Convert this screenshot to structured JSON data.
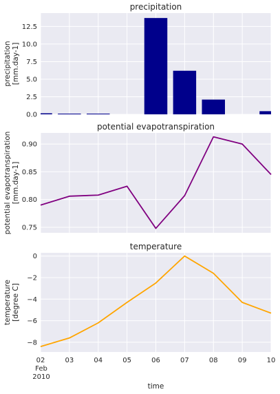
{
  "chart_data": [
    {
      "type": "bar",
      "title": "precipitation",
      "ylabel": [
        "precipitation",
        "[mm.day-1]"
      ],
      "x": [
        "2010-02-02",
        "2010-02-03",
        "2010-02-04",
        "2010-02-05",
        "2010-02-06",
        "2010-02-07",
        "2010-02-08",
        "2010-02-09",
        "2010-02-10"
      ],
      "values": [
        0.15,
        0.1,
        0.1,
        0.0,
        13.7,
        6.2,
        2.1,
        0.0,
        0.45
      ],
      "ylim": [
        0,
        14.4
      ],
      "yticks": [
        0.0,
        2.5,
        5.0,
        7.5,
        10.0,
        12.5
      ],
      "ytick_labels": [
        "0.0",
        "2.5",
        "5.0",
        "7.5",
        "10.0",
        "12.5"
      ],
      "color": "#00008b"
    },
    {
      "type": "line",
      "title": "potential evapotranspiration",
      "ylabel": [
        "potential evapotranspiration",
        "[mm.day-1]"
      ],
      "x": [
        "2010-02-02",
        "2010-02-03",
        "2010-02-04",
        "2010-02-05",
        "2010-02-06",
        "2010-02-07",
        "2010-02-08",
        "2010-02-09",
        "2010-02-10"
      ],
      "values": [
        0.79,
        0.806,
        0.808,
        0.824,
        0.748,
        0.807,
        0.913,
        0.9,
        0.845
      ],
      "ylim": [
        0.74,
        0.92
      ],
      "yticks": [
        0.75,
        0.8,
        0.85,
        0.9
      ],
      "ytick_labels": [
        "0.75",
        "0.80",
        "0.85",
        "0.90"
      ],
      "color": "#800080"
    },
    {
      "type": "line",
      "title": "temperature",
      "ylabel": [
        "temperature",
        "[degree C]"
      ],
      "xlabel": "time",
      "x": [
        "2010-02-02",
        "2010-02-03",
        "2010-02-04",
        "2010-02-05",
        "2010-02-06",
        "2010-02-07",
        "2010-02-08",
        "2010-02-09",
        "2010-02-10"
      ],
      "values": [
        -8.4,
        -7.6,
        -6.2,
        -4.3,
        -2.5,
        0.0,
        -1.6,
        -4.3,
        -5.3
      ],
      "ylim": [
        -8.9,
        0.3
      ],
      "yticks": [
        -8,
        -6,
        -4,
        -2,
        0
      ],
      "ytick_labels": [
        "−8",
        "−6",
        "−4",
        "−2",
        "0"
      ],
      "xtick_labels": [
        "02",
        "03",
        "04",
        "05",
        "06",
        "07",
        "08",
        "09",
        "10"
      ],
      "xtick_sub": [
        "Feb",
        "2010"
      ],
      "color": "#ffa500"
    }
  ],
  "style": {
    "background": "#eaeaf2",
    "grid": "#ffffff",
    "grid_on": true,
    "text": "#262626"
  }
}
